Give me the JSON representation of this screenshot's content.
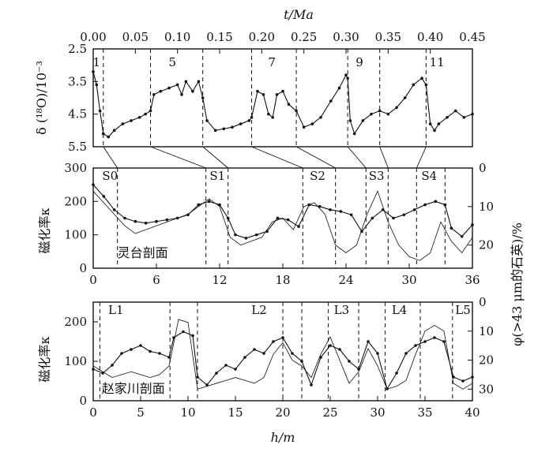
{
  "chart_data": [
    {
      "type": "line",
      "x_axis_top": {
        "label": "t/Ma",
        "ticks": [
          "0.00",
          "0.05",
          "0.10",
          "0.15",
          "0.20",
          "0.25",
          "0.30",
          "0.35",
          "0.40",
          "0.45"
        ],
        "range": [
          0,
          0.45
        ]
      },
      "y_axis_left": {
        "label": "δ (¹⁸O)/10⁻³",
        "ticks": [
          "2.5",
          "3.5",
          "4.5",
          "5.5"
        ],
        "range": [
          2.5,
          5.5
        ],
        "inverted": true
      },
      "stage_labels": [
        "1",
        "5",
        "7",
        "9",
        "11"
      ],
      "stage_boundaries_ma": [
        0.012,
        0.068,
        0.13,
        0.188,
        0.241,
        0.302,
        0.34,
        0.395
      ],
      "series": [
        {
          "values": [
            [
              0.0,
              3.2
            ],
            [
              0.004,
              3.6
            ],
            [
              0.008,
              4.4
            ],
            [
              0.012,
              5.1
            ],
            [
              0.018,
              5.2
            ],
            [
              0.025,
              5.0
            ],
            [
              0.035,
              4.8
            ],
            [
              0.045,
              4.7
            ],
            [
              0.055,
              4.6
            ],
            [
              0.062,
              4.5
            ],
            [
              0.068,
              4.4
            ],
            [
              0.072,
              3.9
            ],
            [
              0.08,
              3.8
            ],
            [
              0.09,
              3.7
            ],
            [
              0.1,
              3.6
            ],
            [
              0.105,
              3.9
            ],
            [
              0.11,
              3.5
            ],
            [
              0.118,
              3.8
            ],
            [
              0.125,
              3.5
            ],
            [
              0.13,
              4.0
            ],
            [
              0.135,
              4.7
            ],
            [
              0.145,
              5.0
            ],
            [
              0.155,
              4.95
            ],
            [
              0.165,
              4.9
            ],
            [
              0.175,
              4.8
            ],
            [
              0.185,
              4.7
            ],
            [
              0.188,
              4.6
            ],
            [
              0.195,
              3.8
            ],
            [
              0.202,
              3.9
            ],
            [
              0.208,
              4.5
            ],
            [
              0.213,
              4.6
            ],
            [
              0.218,
              3.9
            ],
            [
              0.225,
              3.8
            ],
            [
              0.232,
              4.2
            ],
            [
              0.241,
              4.4
            ],
            [
              0.25,
              4.9
            ],
            [
              0.26,
              4.8
            ],
            [
              0.27,
              4.6
            ],
            [
              0.282,
              4.1
            ],
            [
              0.292,
              3.7
            ],
            [
              0.3,
              3.3
            ],
            [
              0.302,
              3.4
            ],
            [
              0.305,
              4.7
            ],
            [
              0.31,
              5.1
            ],
            [
              0.32,
              4.7
            ],
            [
              0.33,
              4.5
            ],
            [
              0.34,
              4.4
            ],
            [
              0.35,
              4.5
            ],
            [
              0.36,
              4.3
            ],
            [
              0.37,
              4.0
            ],
            [
              0.38,
              3.6
            ],
            [
              0.39,
              3.4
            ],
            [
              0.395,
              3.6
            ],
            [
              0.4,
              4.8
            ],
            [
              0.405,
              5.0
            ],
            [
              0.41,
              4.8
            ],
            [
              0.42,
              4.6
            ],
            [
              0.43,
              4.4
            ],
            [
              0.44,
              4.6
            ],
            [
              0.45,
              4.5
            ]
          ]
        }
      ]
    },
    {
      "type": "line",
      "place_label": "灵台剖面",
      "x_axis": {
        "ticks": [
          "0",
          "6",
          "12",
          "18",
          "24",
          "30",
          "36"
        ],
        "range": [
          0,
          36
        ]
      },
      "y_axis_left": {
        "label": "磁化率κ",
        "ticks": [
          "0",
          "100",
          "200",
          "300"
        ],
        "range": [
          0,
          300
        ]
      },
      "y_axis_right": {
        "label": "φ(>43 μm的石英)/%",
        "ticks": [
          "0",
          "10",
          "20"
        ],
        "range": [
          0,
          26
        ],
        "inverted": true
      },
      "unit_labels": [
        "S0",
        "S1",
        "S2",
        "S3",
        "S4"
      ],
      "boundaries_m": [
        2.3,
        10.7,
        12.8,
        19.9,
        23.0,
        25.9,
        28.0,
        30.7,
        33.4
      ],
      "series": [
        {
          "style": "dotted",
          "axis": "left",
          "values": [
            [
              0,
              250
            ],
            [
              1,
              215
            ],
            [
              2,
              175
            ],
            [
              3,
              150
            ],
            [
              4,
              140
            ],
            [
              5,
              135
            ],
            [
              6,
              140
            ],
            [
              7,
              145
            ],
            [
              8,
              150
            ],
            [
              9,
              160
            ],
            [
              10,
              190
            ],
            [
              11,
              200
            ],
            [
              12,
              190
            ],
            [
              12.8,
              150
            ],
            [
              13.5,
              100
            ],
            [
              14.5,
              90
            ],
            [
              15.5,
              100
            ],
            [
              16.5,
              110
            ],
            [
              17.5,
              150
            ],
            [
              18.5,
              145
            ],
            [
              19.5,
              125
            ],
            [
              20.5,
              190
            ],
            [
              21.5,
              185
            ],
            [
              22.5,
              175
            ],
            [
              23.5,
              170
            ],
            [
              24.5,
              160
            ],
            [
              25.5,
              110
            ],
            [
              26.5,
              150
            ],
            [
              27.5,
              175
            ],
            [
              28.5,
              150
            ],
            [
              29.5,
              160
            ],
            [
              30.5,
              175
            ],
            [
              31.5,
              190
            ],
            [
              32.5,
              200
            ],
            [
              33.4,
              190
            ],
            [
              34,
              120
            ],
            [
              35,
              95
            ],
            [
              36,
              130
            ]
          ]
        },
        {
          "style": "thin",
          "axis": "right",
          "values": [
            [
              0,
              6
            ],
            [
              1,
              9
            ],
            [
              2,
              12
            ],
            [
              3,
              15
            ],
            [
              4,
              17
            ],
            [
              5,
              16
            ],
            [
              6,
              15
            ],
            [
              7,
              14
            ],
            [
              8,
              13
            ],
            [
              9,
              12
            ],
            [
              10,
              10
            ],
            [
              11,
              8
            ],
            [
              12,
              10
            ],
            [
              13,
              18
            ],
            [
              14,
              20
            ],
            [
              15,
              19
            ],
            [
              16,
              18
            ],
            [
              17,
              14
            ],
            [
              18,
              13
            ],
            [
              19,
              16
            ],
            [
              20,
              10
            ],
            [
              21,
              9
            ],
            [
              22,
              12
            ],
            [
              23,
              20
            ],
            [
              24,
              22
            ],
            [
              25,
              20
            ],
            [
              26,
              12
            ],
            [
              27,
              6
            ],
            [
              28,
              14
            ],
            [
              29,
              20
            ],
            [
              30,
              23
            ],
            [
              31,
              24
            ],
            [
              32,
              22
            ],
            [
              33,
              14
            ],
            [
              34,
              19
            ],
            [
              35,
              22
            ],
            [
              36,
              18
            ]
          ]
        }
      ]
    },
    {
      "type": "line",
      "place_label": "赵家川剖面",
      "x_axis": {
        "label": "h/m",
        "ticks": [
          "0",
          "5",
          "10",
          "15",
          "20",
          "25",
          "30",
          "35",
          "40"
        ],
        "range": [
          0,
          40
        ]
      },
      "y_axis_left": {
        "label": "磁化率κ",
        "ticks": [
          "0",
          "100",
          "200"
        ],
        "range": [
          0,
          250
        ]
      },
      "y_axis_right": {
        "label": "φ(>43 μm的石英)/%",
        "ticks": [
          "0",
          "10",
          "20",
          "30"
        ],
        "range": [
          0,
          34
        ],
        "inverted": true
      },
      "unit_labels": [
        "L1",
        "L2",
        "L3",
        "L4",
        "L5"
      ],
      "boundaries_m": [
        0.7,
        8.1,
        11.0,
        20.0,
        22.0,
        24.8,
        28.0,
        30.8,
        34.5,
        37.9
      ],
      "series": [
        {
          "style": "dotted",
          "axis": "left",
          "values": [
            [
              0,
              80
            ],
            [
              1,
              70
            ],
            [
              2,
              90
            ],
            [
              3,
              120
            ],
            [
              4,
              130
            ],
            [
              5,
              140
            ],
            [
              6,
              125
            ],
            [
              7,
              120
            ],
            [
              8,
              110
            ],
            [
              8.5,
              160
            ],
            [
              9.5,
              175
            ],
            [
              10.5,
              165
            ],
            [
              11,
              60
            ],
            [
              12,
              40
            ],
            [
              13,
              70
            ],
            [
              14,
              90
            ],
            [
              15,
              80
            ],
            [
              16,
              110
            ],
            [
              17,
              130
            ],
            [
              18,
              120
            ],
            [
              19,
              150
            ],
            [
              20,
              160
            ],
            [
              21,
              120
            ],
            [
              22,
              100
            ],
            [
              23,
              40
            ],
            [
              24,
              110
            ],
            [
              25,
              140
            ],
            [
              26,
              130
            ],
            [
              27,
              100
            ],
            [
              28,
              80
            ],
            [
              29,
              150
            ],
            [
              30,
              120
            ],
            [
              31,
              30
            ],
            [
              32,
              70
            ],
            [
              33,
              120
            ],
            [
              34,
              140
            ],
            [
              35,
              150
            ],
            [
              36,
              160
            ],
            [
              37,
              150
            ],
            [
              38,
              60
            ],
            [
              39,
              50
            ],
            [
              40,
              60
            ]
          ]
        },
        {
          "style": "thin",
          "axis": "right",
          "values": [
            [
              0,
              22
            ],
            [
              1,
              24
            ],
            [
              2,
              26
            ],
            [
              3,
              25
            ],
            [
              4,
              24
            ],
            [
              5,
              25
            ],
            [
              6,
              26
            ],
            [
              7,
              25
            ],
            [
              8,
              22
            ],
            [
              9,
              6
            ],
            [
              10,
              7
            ],
            [
              11,
              30
            ],
            [
              12,
              29
            ],
            [
              13,
              28
            ],
            [
              14,
              27
            ],
            [
              15,
              26
            ],
            [
              16,
              27
            ],
            [
              17,
              28
            ],
            [
              18,
              26
            ],
            [
              19,
              18
            ],
            [
              20,
              14
            ],
            [
              21,
              20
            ],
            [
              22,
              22
            ],
            [
              23,
              26
            ],
            [
              24,
              18
            ],
            [
              25,
              12
            ],
            [
              26,
              20
            ],
            [
              27,
              28
            ],
            [
              28,
              24
            ],
            [
              29,
              16
            ],
            [
              30,
              22
            ],
            [
              31,
              30
            ],
            [
              32,
              29
            ],
            [
              33,
              27
            ],
            [
              34,
              18
            ],
            [
              35,
              10
            ],
            [
              36,
              8
            ],
            [
              37,
              10
            ],
            [
              38,
              28
            ],
            [
              39,
              30
            ],
            [
              40,
              28
            ]
          ]
        }
      ]
    }
  ]
}
